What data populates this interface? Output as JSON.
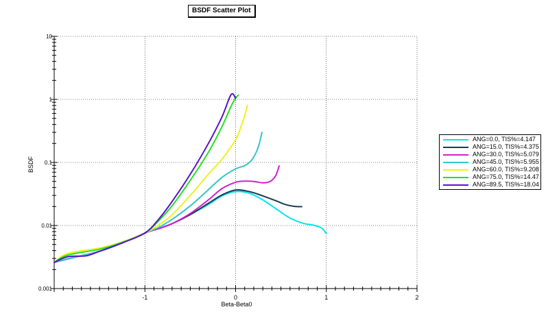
{
  "title_button": "BSDF Scatter Plot",
  "chart_data": {
    "type": "line",
    "title": "BSDF Scatter Plot",
    "xlabel": "Beta-Beta0",
    "ylabel": "BSDF",
    "xlim": [
      -2,
      2
    ],
    "ylim": [
      0.001,
      10
    ],
    "yscale": "log",
    "x_ticks": [
      "-1",
      "0",
      "1",
      "2"
    ],
    "x_tick_values": [
      -1,
      0,
      1,
      2
    ],
    "y_ticks": [
      "0.001",
      "0.01",
      "0.1",
      "1",
      "10"
    ],
    "y_tick_values": [
      0.001,
      0.01,
      0.1,
      1,
      10
    ],
    "grid": true,
    "legend_position": "right",
    "series": [
      {
        "name": "ANG=0.0, TIS%=4.147",
        "color": "#00e5ee",
        "x": [
          -2.0,
          -1.75,
          -1.5,
          -1.25,
          -1.0,
          -0.85,
          -0.7,
          -0.5,
          -0.3,
          -0.15,
          0.0,
          0.15,
          0.3,
          0.45,
          0.6,
          0.75,
          0.85,
          0.95,
          1.0
        ],
        "y": [
          0.0026,
          0.0032,
          0.0039,
          0.0053,
          0.0076,
          0.0089,
          0.0107,
          0.0149,
          0.0215,
          0.0295,
          0.0345,
          0.0325,
          0.0255,
          0.0182,
          0.0131,
          0.0108,
          0.0102,
          0.0091,
          0.0074
        ]
      },
      {
        "name": "ANG=15.0, TIS%=4.375",
        "color": "#1a3a52",
        "x": [
          -2.0,
          -1.75,
          -1.5,
          -1.25,
          -1.0,
          -0.85,
          -0.7,
          -0.5,
          -0.3,
          -0.15,
          0.0,
          0.15,
          0.3,
          0.45,
          0.55,
          0.65,
          0.73
        ],
        "y": [
          0.0026,
          0.0032,
          0.0039,
          0.0053,
          0.0076,
          0.0089,
          0.0107,
          0.0149,
          0.0225,
          0.0305,
          0.0365,
          0.0345,
          0.0295,
          0.0245,
          0.0215,
          0.0201,
          0.0199
        ]
      },
      {
        "name": "ANG=30.0, TIS%=5.079",
        "color": "#d21ed2",
        "x": [
          -2.0,
          -1.75,
          -1.5,
          -1.25,
          -1.0,
          -0.85,
          -0.7,
          -0.5,
          -0.3,
          -0.15,
          0.0,
          0.1,
          0.2,
          0.3,
          0.38,
          0.44,
          0.48
        ],
        "y": [
          0.0026,
          0.0032,
          0.0039,
          0.0053,
          0.0076,
          0.0089,
          0.0107,
          0.0155,
          0.0255,
          0.0385,
          0.0485,
          0.0505,
          0.05,
          0.0475,
          0.05,
          0.061,
          0.088
        ]
      },
      {
        "name": "ANG=45.0, TIS%=5.955",
        "color": "#33c6c6",
        "x": [
          -2.0,
          -1.75,
          -1.5,
          -1.25,
          -1.0,
          -0.85,
          -0.7,
          -0.5,
          -0.3,
          -0.15,
          0.0,
          0.1,
          0.17,
          0.22,
          0.26,
          0.29
        ],
        "y": [
          0.0026,
          0.0032,
          0.0039,
          0.0053,
          0.0076,
          0.0093,
          0.0125,
          0.0205,
          0.037,
          0.058,
          0.079,
          0.089,
          0.106,
          0.138,
          0.195,
          0.3
        ]
      },
      {
        "name": "ANG=60.0, TIS%=9.208",
        "color": "#f0f020",
        "x": [
          -2.0,
          -1.85,
          -1.5,
          -1.25,
          -1.0,
          -0.85,
          -0.7,
          -0.5,
          -0.3,
          -0.15,
          0.0,
          0.06,
          0.1,
          0.13
        ],
        "y": [
          0.0026,
          0.0036,
          0.0044,
          0.0055,
          0.0076,
          0.0101,
          0.0148,
          0.03,
          0.065,
          0.113,
          0.23,
          0.37,
          0.56,
          0.8
        ]
      },
      {
        "name": "ANG=75.0, TIS%=14.47",
        "color": "#22e022",
        "x": [
          -2.0,
          -1.85,
          -1.5,
          -1.25,
          -1.0,
          -0.85,
          -0.7,
          -0.5,
          -0.3,
          -0.15,
          -0.05,
          0.0,
          0.03
        ],
        "y": [
          0.0026,
          0.0034,
          0.0042,
          0.0054,
          0.0076,
          0.0118,
          0.0205,
          0.052,
          0.145,
          0.37,
          0.78,
          1.05,
          1.17
        ]
      },
      {
        "name": "ANG=89.5, TIS%=18.04",
        "color": "#5a12c8",
        "x": [
          -2.0,
          -1.85,
          -1.65,
          -1.5,
          -1.25,
          -1.0,
          -0.85,
          -0.7,
          -0.5,
          -0.3,
          -0.15,
          -0.05,
          0.0
        ],
        "y": [
          0.0026,
          0.0032,
          0.0033,
          0.0039,
          0.0053,
          0.0076,
          0.0125,
          0.024,
          0.065,
          0.2,
          0.53,
          1.19,
          1.04
        ]
      }
    ]
  }
}
